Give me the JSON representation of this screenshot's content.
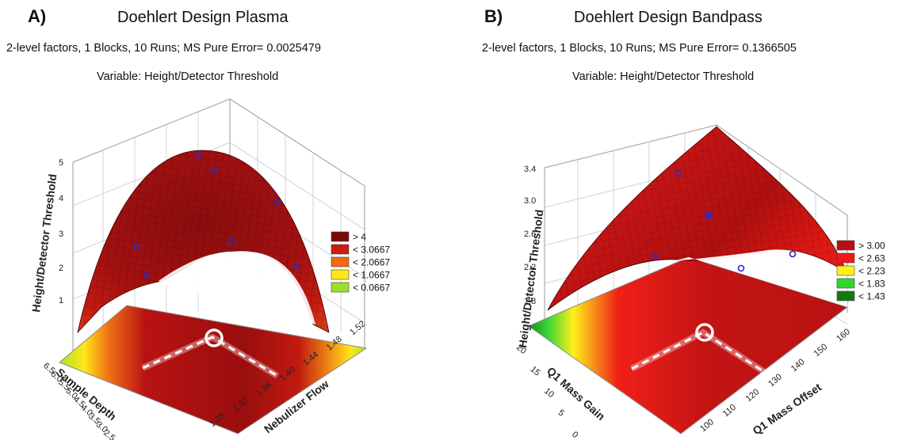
{
  "chart_data": [
    {
      "type": "surface3d",
      "panel_label": "A)",
      "title": "Doehlert Design Plasma",
      "subtitle": "2-level factors, 1 Blocks, 10 Runs; MS Pure Error= 0.0025479",
      "variable_text": "Variable: Height/Detector Threshold",
      "zlabel": "Height/Detector Threshold",
      "xlabel": "Sample Depth",
      "ylabel": "Nebulizer Flow",
      "z_ticks": [
        "1",
        "2",
        "3",
        "4",
        "5"
      ],
      "zlim": [
        0.5,
        5
      ],
      "x_ticks": [
        "6.5",
        "6.0",
        "5.5",
        "5.0",
        "4.5",
        "4.0",
        "3.5",
        "3.0",
        "2.5"
      ],
      "y_ticks": [
        "1.28",
        "1.32",
        "1.36",
        "1.40",
        "1.44",
        "1.48",
        "1.52"
      ],
      "legend": [
        {
          "label": "> 4",
          "color": "#7a0a0a"
        },
        {
          "label": "< 3.0667",
          "color": "#cc1c0c"
        },
        {
          "label": "< 2.0667",
          "color": "#f26a10"
        },
        {
          "label": "< 1.0667",
          "color": "#ffe81a"
        },
        {
          "label": "< 0.0667",
          "color": "#9be02a"
        }
      ],
      "optimum": {
        "x": 5.0,
        "y": 1.4,
        "z": 4.8
      }
    },
    {
      "type": "surface3d",
      "panel_label": "B)",
      "title": "Doehlert Design Bandpass",
      "subtitle": "2-level factors, 1 Blocks, 10 Runs; MS Pure Error= 0.1366505",
      "variable_text": "Variable: Height/Detector Threshold",
      "zlabel": "Height/Detector Threshold",
      "xlabel": "Q1 Mass Gain",
      "ylabel": "Q1 Mass Offset",
      "z_ticks": [
        "1.8",
        "2.2",
        "2.6",
        "3.0",
        "3.4"
      ],
      "zlim": [
        1.6,
        3.5
      ],
      "x_ticks": [
        "20",
        "15",
        "10",
        "5",
        "0"
      ],
      "y_ticks": [
        "100",
        "110",
        "120",
        "130",
        "140",
        "150",
        "160"
      ],
      "legend": [
        {
          "label": "> 3.00",
          "color": "#b80f0f"
        },
        {
          "label": "< 2.63",
          "color": "#f01818"
        },
        {
          "label": "< 2.23",
          "color": "#ffef1a"
        },
        {
          "label": "< 1.83",
          "color": "#2ed82e"
        },
        {
          "label": "< 1.43",
          "color": "#137a13"
        }
      ],
      "optimum": {
        "x": 8,
        "y": 135,
        "z": 3.4
      }
    }
  ]
}
